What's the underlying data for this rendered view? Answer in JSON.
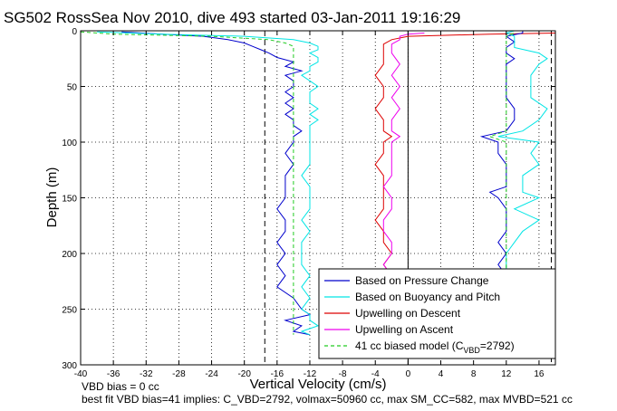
{
  "chart_data": {
    "type": "line",
    "title": "SG502 RossSea Nov 2010, dive 493 started 03-Jan-2011 19:16:29",
    "xlabel": "Vertical Velocity (cm/s)",
    "ylabel": "Depth (m)",
    "xlim": [
      -40,
      18
    ],
    "ylim": [
      300,
      0
    ],
    "y_reversed": true,
    "grid": true,
    "xticks": [
      -40,
      -36,
      -32,
      -28,
      -24,
      -20,
      -16,
      -12,
      -8,
      -4,
      0,
      4,
      8,
      12,
      16
    ],
    "yticks": [
      0,
      50,
      100,
      150,
      200,
      250,
      300
    ],
    "legend_position": "bottom-right",
    "legend": [
      {
        "label": "Based on Pressure Change",
        "color": "#0000cc",
        "style": "solid"
      },
      {
        "label": "Based on Buoyancy and Pitch",
        "color": "#00e5e5",
        "style": "solid"
      },
      {
        "label": "Upwelling on Descent",
        "color": "#dd0000",
        "style": "solid"
      },
      {
        "label": "Upwelling on Ascent",
        "color": "#ee00ee",
        "style": "solid"
      },
      {
        "label": "41 cc biased model (C",
        "sub": "VBD",
        "tail": "=2792)",
        "color": "#22cc22",
        "style": "dashed"
      }
    ],
    "reference_lines": [
      {
        "x": -17.5,
        "style": "dashed"
      },
      {
        "x": 0,
        "style": "solid"
      },
      {
        "x": 17.5,
        "style": "dashed"
      }
    ],
    "series": [
      {
        "key": "pres_desc",
        "color": "#0000cc",
        "depth": [
          1,
          3,
          5,
          8,
          11,
          14,
          17,
          20,
          24,
          28,
          32,
          36,
          40,
          45,
          50,
          55,
          60,
          65,
          70,
          75,
          80,
          85,
          90,
          95,
          100,
          110,
          120,
          130,
          140,
          150,
          160,
          170,
          180,
          190,
          200,
          210,
          220,
          230,
          240,
          250,
          255,
          260,
          265,
          270,
          273
        ],
        "velocity": [
          -35,
          -30,
          -25,
          -22,
          -20,
          -19,
          -18,
          -17,
          -16,
          -14,
          -15,
          -13,
          -15,
          -14,
          -14,
          -15,
          -14,
          -15,
          -14,
          -15,
          -14,
          -14,
          -13,
          -14,
          -14,
          -15,
          -14,
          -15,
          -15,
          -15,
          -16,
          -15,
          -15,
          -16,
          -15,
          -16,
          -15,
          -16,
          -14,
          -13,
          -12,
          -15,
          -13,
          -14,
          -12
        ]
      },
      {
        "key": "buoy_desc",
        "color": "#00e5e5",
        "depth": [
          1,
          3,
          5,
          8,
          11,
          14,
          17,
          20,
          24,
          28,
          32,
          36,
          40,
          45,
          50,
          55,
          60,
          65,
          70,
          75,
          80,
          85,
          90,
          95,
          100,
          110,
          120,
          130,
          140,
          150,
          160,
          170,
          180,
          190,
          200,
          210,
          220,
          230,
          240,
          250,
          255,
          260,
          265,
          270,
          273
        ],
        "velocity": [
          -38,
          -30,
          -20,
          -14,
          -12,
          -11,
          -11,
          -12,
          -11,
          -11,
          -12,
          -12,
          -13,
          -12,
          -11,
          -12,
          -12,
          -12,
          -11,
          -12,
          -11,
          -12,
          -12,
          -12,
          -12,
          -12,
          -12,
          -13,
          -12,
          -12,
          -12,
          -13,
          -12,
          -13,
          -13,
          -13,
          -12,
          -13,
          -12,
          -13,
          -12,
          -12,
          -11,
          -13,
          -12
        ]
      },
      {
        "key": "model_desc",
        "color": "#22cc22",
        "depth": [
          1,
          3,
          5,
          8,
          11,
          14,
          17,
          20,
          24,
          28,
          32,
          36,
          40,
          45,
          50,
          55,
          60,
          65,
          70,
          75,
          80,
          85,
          90,
          95,
          100,
          110,
          120,
          130,
          140,
          150,
          160,
          170,
          180,
          190,
          200,
          210,
          220,
          230,
          240,
          250,
          255,
          260,
          265,
          270,
          273
        ],
        "velocity": [
          -40,
          -36,
          -24,
          -17,
          -15,
          -14,
          -14,
          -14,
          -14,
          -14,
          -14,
          -14,
          -14,
          -14,
          -14,
          -14,
          -14,
          -14,
          -14,
          -14,
          -14,
          -14,
          -14,
          -14,
          -14,
          -14,
          -14,
          -14,
          -14,
          -14,
          -14,
          -14,
          -14,
          -14,
          -14,
          -14,
          -14,
          -14,
          -14,
          -14,
          -14,
          -14,
          -14,
          -14,
          -14
        ]
      },
      {
        "key": "upwell_desc",
        "color": "#dd0000",
        "depth": [
          2,
          3,
          5,
          8,
          12,
          20,
          30,
          40,
          50,
          60,
          70,
          80,
          90,
          95,
          100,
          110,
          120,
          130,
          140,
          150,
          160,
          170,
          180,
          190,
          200,
          210,
          220,
          230,
          240,
          250,
          260,
          270
        ],
        "velocity": [
          18,
          10,
          0,
          -2,
          -3,
          -3,
          -3,
          -4,
          -3,
          -3,
          -4,
          -3,
          -3,
          -2,
          -3,
          -3,
          -4,
          -3,
          -3,
          -3,
          -3,
          -4,
          -3,
          -3,
          -2,
          -3,
          -2,
          -3,
          -2,
          -2,
          -2,
          -2
        ]
      },
      {
        "key": "upwell_asc",
        "color": "#ee00ee",
        "depth": [
          2,
          3,
          5,
          8,
          12,
          20,
          30,
          40,
          50,
          60,
          70,
          80,
          90,
          95,
          100,
          110,
          120,
          130,
          140,
          150,
          160,
          170,
          180,
          190,
          200,
          210,
          220,
          230,
          240,
          250,
          260,
          270
        ],
        "velocity": [
          2,
          0,
          -1,
          -1,
          -2,
          -2,
          -1,
          -2,
          -1,
          -2,
          -1,
          -2,
          -2,
          -1,
          -2,
          -2,
          -2,
          -2,
          -3,
          -2,
          -2,
          -3,
          -3,
          -2,
          -2,
          -3,
          -2,
          -3,
          -2,
          -2,
          -2,
          -2
        ]
      },
      {
        "key": "pres_asc",
        "color": "#0000cc",
        "depth": [
          270,
          265,
          260,
          250,
          240,
          230,
          220,
          210,
          200,
          190,
          180,
          170,
          160,
          150,
          145,
          140,
          130,
          120,
          110,
          100,
          95,
          90,
          80,
          70,
          60,
          50,
          40,
          30,
          25,
          20,
          15,
          10,
          5,
          2,
          0
        ],
        "velocity": [
          12,
          12,
          12,
          12,
          12,
          12,
          12,
          11,
          12,
          11,
          12,
          12,
          12,
          11,
          10,
          12,
          12,
          12,
          11,
          11,
          9,
          12,
          13,
          13,
          12,
          12,
          12,
          12,
          13,
          12,
          12,
          13,
          12,
          14,
          14
        ]
      },
      {
        "key": "buoy_asc",
        "color": "#00e5e5",
        "depth": [
          270,
          265,
          260,
          250,
          240,
          230,
          220,
          210,
          200,
          190,
          180,
          170,
          160,
          150,
          145,
          140,
          130,
          120,
          110,
          100,
          95,
          90,
          80,
          70,
          60,
          50,
          40,
          30,
          25,
          20,
          15,
          10,
          5,
          2,
          0
        ],
        "velocity": [
          12,
          12,
          12,
          12,
          12,
          12,
          12,
          12,
          12,
          13,
          14,
          16,
          13,
          16,
          14,
          14,
          14,
          16,
          15,
          16,
          11,
          14,
          16,
          17,
          15,
          15,
          15,
          16,
          17,
          16,
          13,
          13,
          13,
          12,
          13
        ]
      },
      {
        "key": "model_asc",
        "color": "#22cc22",
        "depth": [
          270,
          260,
          250,
          240,
          230,
          220,
          210,
          200,
          190,
          180,
          170,
          160,
          150,
          140,
          130,
          120,
          110,
          100,
          95,
          90,
          80,
          70,
          60,
          50,
          40,
          30,
          20,
          10,
          5,
          2
        ],
        "velocity": [
          12,
          12,
          12,
          12,
          12,
          12,
          12,
          12,
          12,
          12,
          12,
          12,
          12,
          12,
          12,
          12,
          12,
          12,
          10,
          12,
          12,
          12,
          12,
          12,
          12,
          12,
          12,
          12,
          12,
          13
        ]
      }
    ]
  },
  "footer": {
    "line1": "VBD bias = 0 cc",
    "line2": "best fit VBD bias=41 implies: C_VBD=2792, volmax=50960 cc, max SM_CC=582, max MVBD=521 cc"
  }
}
